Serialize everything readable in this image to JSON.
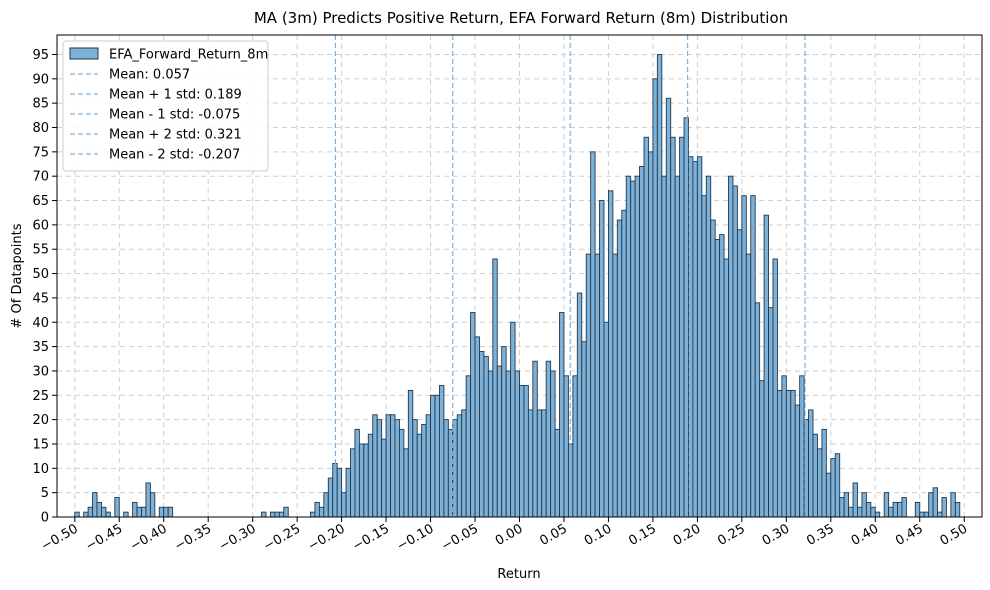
{
  "chart_data": {
    "type": "bar",
    "title": "MA (3m) Predicts Positive Return, EFA Forward Return (8m) Distribution",
    "xlabel": "Return",
    "ylabel": "# Of Datapoints",
    "xlim": [
      -0.52,
      0.52
    ],
    "ylim": [
      0,
      99
    ],
    "x_ticks": [
      "−0.50",
      "−0.45",
      "−0.40",
      "−0.35",
      "−0.30",
      "−0.25",
      "−0.20",
      "−0.15",
      "−0.10",
      "−0.05",
      "0.00",
      "0.05",
      "0.10",
      "0.15",
      "0.20",
      "0.25",
      "0.30",
      "0.35",
      "0.40",
      "0.45",
      "0.50"
    ],
    "x_tick_values": [
      -0.5,
      -0.45,
      -0.4,
      -0.35,
      -0.3,
      -0.25,
      -0.2,
      -0.15,
      -0.1,
      -0.05,
      0.0,
      0.05,
      0.1,
      0.15,
      0.2,
      0.25,
      0.3,
      0.35,
      0.4,
      0.45,
      0.5
    ],
    "y_ticks": [
      0,
      5,
      10,
      15,
      20,
      25,
      30,
      35,
      40,
      45,
      50,
      55,
      60,
      65,
      70,
      75,
      80,
      85,
      90,
      95
    ],
    "grid": true,
    "legend_position": "top-left",
    "bin_start": -0.5,
    "bin_width": 0.005,
    "series": [
      {
        "name": "EFA_Forward_Return_8m",
        "color": "#7fb0d5",
        "edge_color": "#1f3a52",
        "values": [
          1,
          0,
          1,
          2,
          5,
          3,
          2,
          1,
          0,
          4,
          0,
          1,
          0,
          3,
          2,
          2,
          7,
          5,
          0,
          2,
          2,
          2,
          0,
          0,
          0,
          0,
          0,
          0,
          0,
          0,
          0,
          0,
          0,
          0,
          0,
          0,
          0,
          0,
          0,
          0,
          0,
          0,
          1,
          0,
          1,
          1,
          1,
          2,
          0,
          0,
          0,
          0,
          0,
          1,
          3,
          2,
          5,
          8,
          11,
          10,
          5,
          10,
          14,
          18,
          15,
          15,
          17,
          21,
          20,
          16,
          21,
          21,
          20,
          18,
          14,
          26,
          20,
          17,
          19,
          21,
          25,
          25,
          27,
          20,
          18,
          20,
          21,
          22,
          29,
          42,
          37,
          34,
          33,
          30,
          53,
          31,
          35,
          30,
          40,
          30,
          27,
          27,
          22,
          32,
          22,
          22,
          32,
          30,
          18,
          42,
          29,
          15,
          29,
          46,
          36,
          54,
          75,
          54,
          65,
          40,
          67,
          54,
          61,
          63,
          70,
          69,
          70,
          72,
          78,
          75,
          90,
          95,
          70,
          86,
          78,
          70,
          78,
          82,
          74,
          73,
          74,
          66,
          70,
          61,
          57,
          58,
          53,
          70,
          68,
          59,
          66,
          54,
          66,
          44,
          28,
          62,
          43,
          53,
          26,
          29,
          26,
          26,
          23,
          29,
          20,
          22,
          17,
          14,
          18,
          9,
          12,
          13,
          4,
          5,
          2,
          7,
          2,
          5,
          3,
          2,
          1,
          0,
          5,
          2,
          3,
          3,
          4,
          0,
          0,
          3,
          1,
          1,
          5,
          6,
          1,
          4,
          0,
          5,
          3,
          0,
          0,
          0,
          0,
          0,
          0,
          0,
          0,
          0,
          0,
          0,
          0,
          0,
          0,
          0,
          0,
          0,
          0,
          0,
          0,
          0,
          0,
          0,
          0,
          0,
          0,
          0,
          0,
          0,
          0,
          0,
          0,
          0,
          0,
          0,
          0,
          0,
          0,
          0,
          0,
          0,
          0,
          0,
          0,
          0,
          0,
          0,
          0
        ]
      }
    ],
    "reference_lines": [
      {
        "label": "Mean: 0.057",
        "x": 0.057,
        "color": "#7fb0d5"
      },
      {
        "label": "Mean + 1 std: 0.189",
        "x": 0.189,
        "color": "#7fb0d5"
      },
      {
        "label": "Mean - 1 std: -0.075",
        "x": -0.075,
        "color": "#7fb0d5"
      },
      {
        "label": "Mean + 2 std: 0.321",
        "x": 0.321,
        "color": "#7fb0d5"
      },
      {
        "label": "Mean - 2 std: -0.207",
        "x": -0.207,
        "color": "#7fb0d5"
      }
    ]
  }
}
